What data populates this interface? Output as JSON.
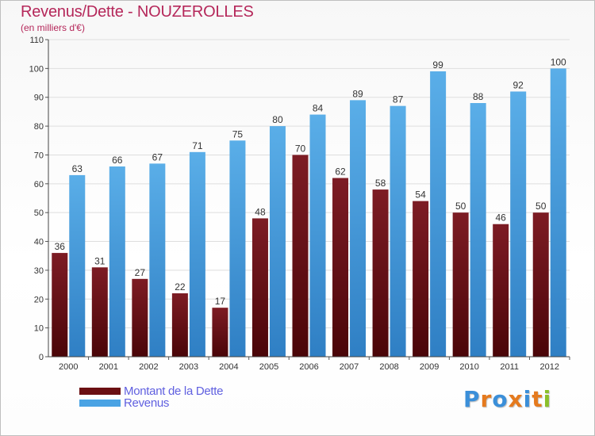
{
  "title": "Revenus/Dette - NOUZEROLLES",
  "subtitle": "(en milliers d'€)",
  "colors": {
    "title": "#b5275a",
    "dette": "#6b0f12",
    "revenus": "#4aa3e4",
    "legend_text": "#6060e0"
  },
  "logo": {
    "text": "Proxiti",
    "letter_colors": [
      "#3b8fd9",
      "#e57a1e",
      "#3b8fd9",
      "#e57a1e",
      "#3b8fd9",
      "#e57a1e",
      "#8bbf2a"
    ]
  },
  "legend": [
    {
      "label": "Montant de la Dette",
      "color": "#6b0f12"
    },
    {
      "label": "Revenus",
      "color": "#4aa3e4"
    }
  ],
  "chart_data": {
    "type": "bar",
    "title": "Revenus/Dette - NOUZEROLLES",
    "subtitle": "(en milliers d'€)",
    "categories": [
      "2000",
      "2001",
      "2002",
      "2003",
      "2004",
      "2005",
      "2006",
      "2007",
      "2008",
      "2009",
      "2010",
      "2011",
      "2012"
    ],
    "series": [
      {
        "name": "Montant de la Dette",
        "values": [
          36,
          31,
          27,
          22,
          17,
          48,
          70,
          62,
          58,
          54,
          50,
          46,
          50
        ]
      },
      {
        "name": "Revenus",
        "values": [
          63,
          66,
          67,
          71,
          75,
          80,
          84,
          89,
          87,
          99,
          88,
          92,
          100
        ]
      }
    ],
    "ylim": [
      0,
      110
    ],
    "yticks": [
      0,
      10,
      20,
      30,
      40,
      50,
      60,
      70,
      80,
      90,
      100,
      110
    ],
    "grid": true,
    "legend_position": "bottom-left"
  }
}
